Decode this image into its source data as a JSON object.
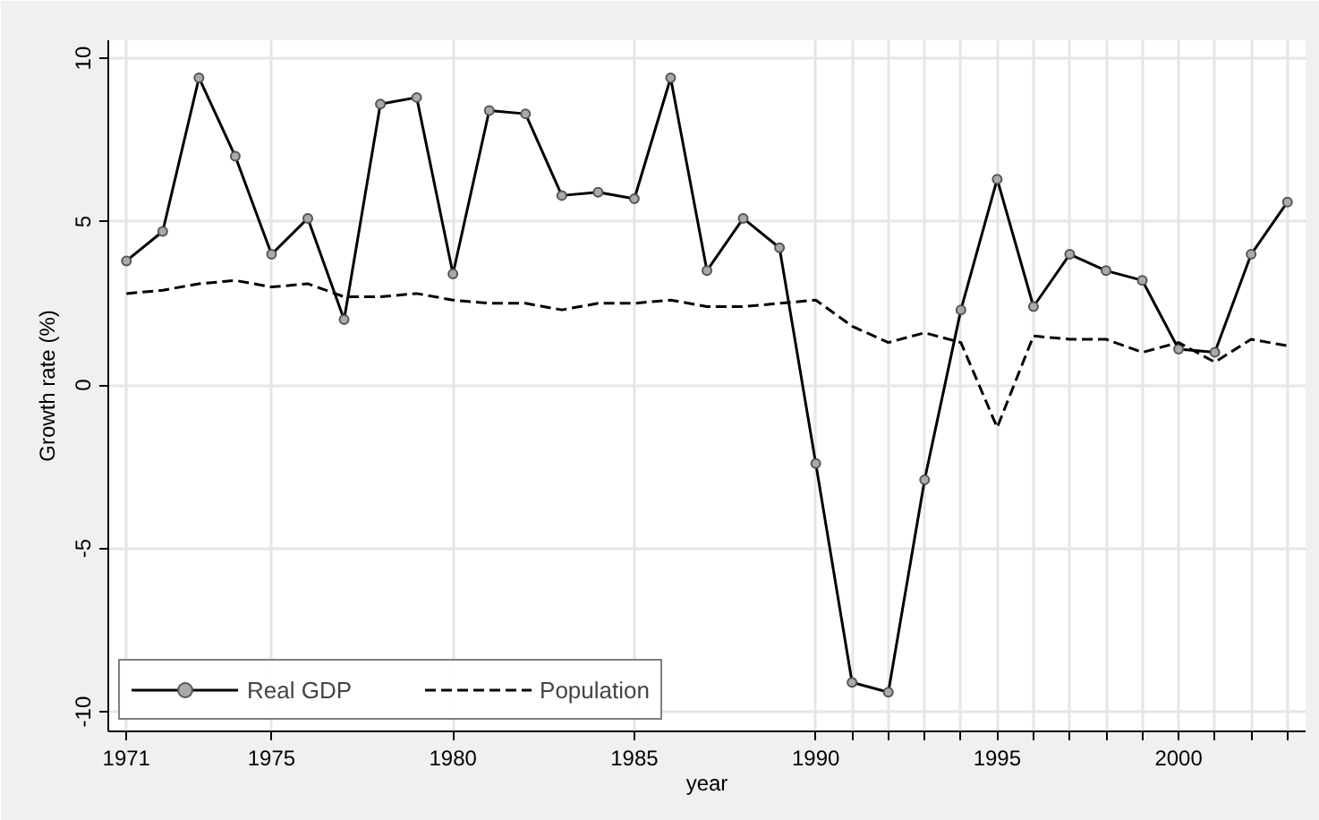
{
  "chart_data": {
    "type": "line",
    "xlabel": "year",
    "ylabel": "Growth rate (%)",
    "x": [
      1971,
      1972,
      1973,
      1974,
      1975,
      1976,
      1977,
      1978,
      1979,
      1980,
      1981,
      1982,
      1983,
      1984,
      1985,
      1986,
      1987,
      1988,
      1989,
      1990,
      1991,
      1992,
      1993,
      1994,
      1995,
      1996,
      1997,
      1998,
      1999,
      2000,
      2001,
      2002,
      2003
    ],
    "series": [
      {
        "name": "Real GDP",
        "color": "#000000",
        "marker": "circle",
        "line_style": "solid",
        "values": [
          3.8,
          4.7,
          9.4,
          7.0,
          4.0,
          5.1,
          2.0,
          8.6,
          8.8,
          3.4,
          8.4,
          8.3,
          5.8,
          5.9,
          5.7,
          9.4,
          3.5,
          5.1,
          4.2,
          -2.4,
          -9.1,
          -9.4,
          -2.9,
          2.3,
          6.3,
          2.4,
          4.0,
          3.5,
          3.2,
          1.1,
          1.0,
          4.0,
          5.6
        ]
      },
      {
        "name": "Population",
        "color": "#000000",
        "marker": "none",
        "line_style": "dashed",
        "values": [
          2.8,
          2.9,
          3.1,
          3.2,
          3.0,
          3.1,
          2.7,
          2.7,
          2.8,
          2.6,
          2.5,
          2.5,
          2.3,
          2.5,
          2.5,
          2.6,
          2.4,
          2.4,
          2.5,
          2.6,
          1.8,
          1.3,
          1.6,
          1.3,
          -1.3,
          1.5,
          1.4,
          1.4,
          1.0,
          1.3,
          0.7,
          1.4,
          1.2
        ]
      }
    ],
    "xlim": [
      1970.5,
      2003.5
    ],
    "ylim": [
      -10.6,
      10.55
    ],
    "xticks": [
      1971,
      1975,
      1980,
      1985,
      1990,
      {
        "value": 1991,
        "label": null
      },
      {
        "value": 1992,
        "label": null
      },
      {
        "value": 1993,
        "label": null
      },
      {
        "value": 1994,
        "label": null
      },
      1995,
      {
        "value": 1996,
        "label": null
      },
      {
        "value": 1997,
        "label": null
      },
      {
        "value": 1998,
        "label": null
      },
      {
        "value": 1999,
        "label": null
      },
      2000,
      {
        "value": 2001,
        "label": null
      },
      {
        "value": 2002,
        "label": null
      },
      {
        "value": 2003,
        "label": null
      }
    ],
    "yticks": [
      -10,
      -5,
      0,
      5,
      10
    ],
    "grid": true,
    "legend": "bottom left"
  }
}
